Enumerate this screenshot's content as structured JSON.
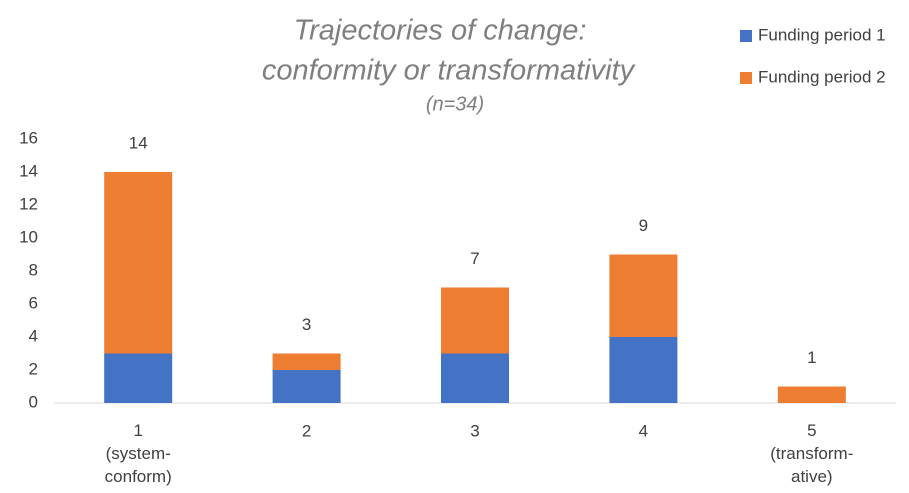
{
  "chart_data": {
    "type": "stacked_bar",
    "title": [
      "Trajectories of change:",
      "conformity or transformativity"
    ],
    "subtitle": "(n=34)",
    "categories": [
      "1\n(system-\nconform)",
      "2",
      "3",
      "4",
      "5\n(transform-\native)"
    ],
    "series": [
      {
        "name": "Funding period 1",
        "color": "#4472c4",
        "values": [
          3,
          2,
          3,
          4,
          0
        ]
      },
      {
        "name": "Funding period 2",
        "color": "#ed7d31",
        "values": [
          11,
          1,
          4,
          5,
          1
        ]
      }
    ],
    "total_labels": [
      14,
      3,
      7,
      9,
      1
    ],
    "ylim": [
      0,
      16
    ],
    "yticks": [
      0,
      2,
      4,
      6,
      8,
      10,
      12,
      14,
      16
    ],
    "grid": false,
    "legend": "top-right"
  }
}
